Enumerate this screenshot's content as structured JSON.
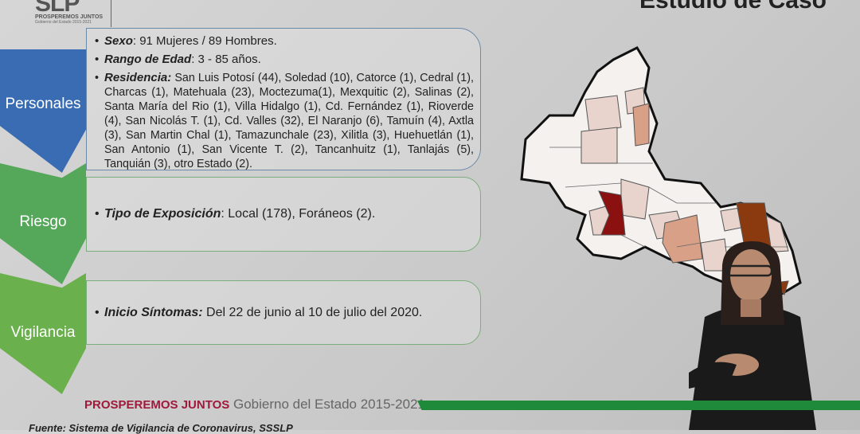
{
  "title": "Estudio de Caso",
  "logo": {
    "mark": "SLP",
    "line1": "PROSPEREMOS JUNTOS",
    "line2": "Gobierno del Estado 2015-2021"
  },
  "sections": [
    {
      "label": "Personales",
      "color": "#3a6cb4"
    },
    {
      "label": "Riesgo",
      "color": "#55a85a"
    },
    {
      "label": "Vigilancia",
      "color": "#6ab04c"
    }
  ],
  "personales": {
    "sexo_label": "Sexo",
    "sexo_value": ":  91 Mujeres / 89 Hombres.",
    "edad_label": "Rango de Edad",
    "edad_value": ":  3 - 85 años.",
    "residencia_label": "Residencia:",
    "residencia_value": " San Luis Potosí (44), Soledad (10), Catorce (1), Cedral (1), Charcas (1), Matehuala (23), Moctezuma(1), Mexquitic (2), Salinas (2), Santa María del Rio (1), Villa Hidalgo (1), Cd. Fernández (1), Rioverde (4), San Nicolás T. (1), Cd. Valles (32), El Naranjo (6), Tamuín (4), Axtla (3), San Martin Chal (1), Tamazunchale (23), Xilitla (3), Huehuetlán (1), San Antonio (1), San Vicente T. (2), Tancanhuitz (1), Tanlajás (5),  Tanquián (3), otro Estado (2)."
  },
  "riesgo": {
    "label": "Tipo de Exposición",
    "value": ": Local (178), Foráneos (2)."
  },
  "vigilancia": {
    "label": "Inicio Síntomas:",
    "value": "  Del 22 de junio al 10 de julio del 2020."
  },
  "footer": {
    "brand": "PROSPEREMOS JUNTOS",
    "text": " Gobierno del Estado 2015-2021",
    "bar_color": "#1e8a3a"
  },
  "source": "Fuente: Sistema de Vigilancia de Coronavirus, SSSLP",
  "map_colors": {
    "light": "#e8d4cc",
    "medium": "#d9a088",
    "dark": "#8b3a10",
    "darkest": "#8b1010"
  }
}
